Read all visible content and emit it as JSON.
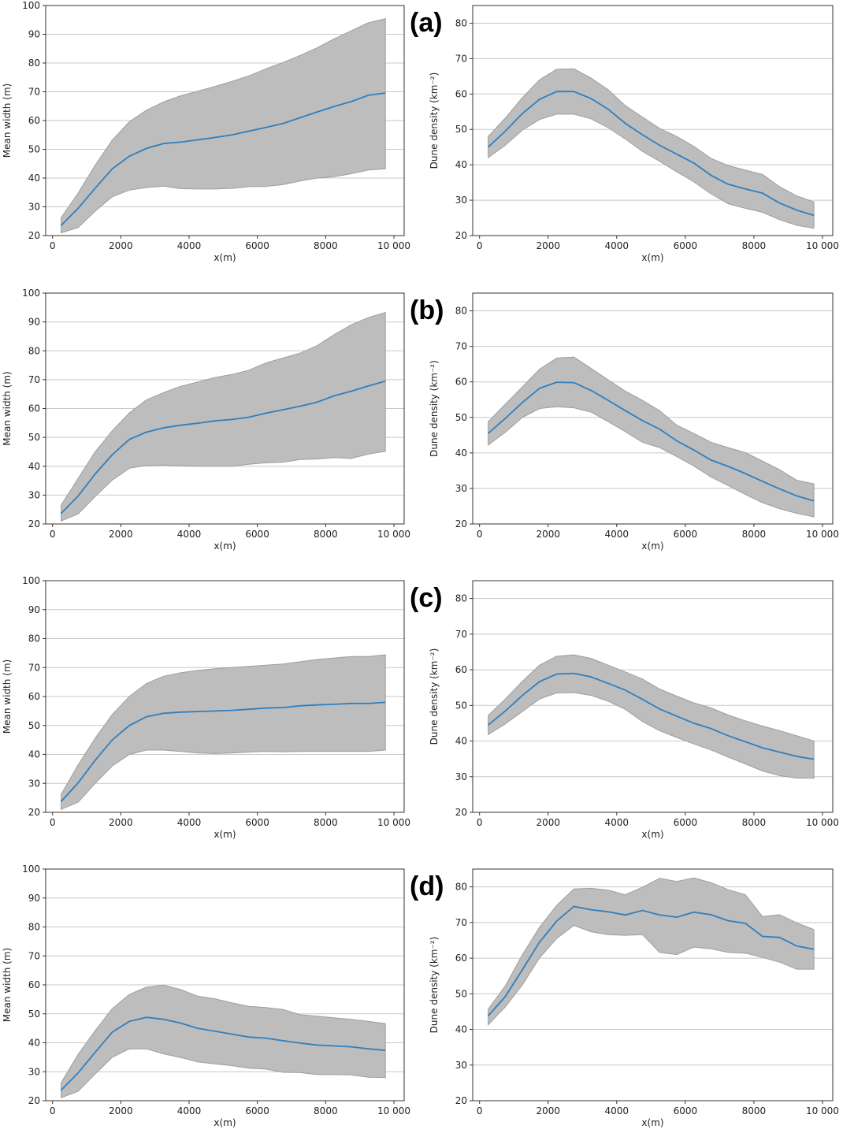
{
  "figure": {
    "panel_labels": [
      "(a)",
      "(b)",
      "(c)",
      "(d)"
    ]
  },
  "colors": {
    "line": "#2f7fbf",
    "band": "#bdbdbd",
    "band_edge": "#9e9e9e",
    "grid": "#c8c8c8",
    "axes": "#333333"
  },
  "chart_data": [
    {
      "panel": "(a)",
      "type": "line",
      "title": "",
      "xlabel": "x(m)",
      "ylabel": "Mean width (m)",
      "xlim": [
        -200,
        10300
      ],
      "ylim": [
        20,
        100
      ],
      "xticks": [
        0,
        2000,
        4000,
        6000,
        8000,
        10000
      ],
      "xtick_labels": [
        "0",
        "2000",
        "4000",
        "6000",
        "8000",
        "10 000"
      ],
      "yticks": [
        20,
        30,
        40,
        50,
        60,
        70,
        80,
        90,
        100
      ],
      "ytick_labels": [
        "20",
        "30",
        "40",
        "50",
        "60",
        "70",
        "80",
        "90",
        "100"
      ],
      "grid": "horizontal",
      "x": [
        250,
        750,
        1250,
        1750,
        2250,
        2750,
        3250,
        3750,
        4250,
        4750,
        5250,
        5750,
        6250,
        6750,
        7250,
        7750,
        8250,
        8750,
        9250,
        9750
      ],
      "mean": [
        23.5,
        29.5,
        36.5,
        43.2,
        47.6,
        50.3,
        52.0,
        52.5,
        53.3,
        54.1,
        55.0,
        56.3,
        57.6,
        59.0,
        61.0,
        63.0,
        64.9,
        66.6,
        68.8,
        69.6
      ],
      "lower": [
        21.0,
        22.8,
        28.5,
        33.5,
        35.8,
        36.7,
        37.2,
        36.3,
        36.2,
        36.2,
        36.4,
        37.0,
        37.1,
        37.7,
        39.0,
        40.0,
        40.5,
        41.5,
        42.8,
        43.2
      ],
      "upper": [
        26.2,
        34.8,
        44.5,
        53.2,
        59.6,
        63.6,
        66.5,
        68.6,
        70.2,
        71.8,
        73.6,
        75.5,
        78.0,
        80.2,
        82.6,
        85.3,
        88.4,
        91.2,
        94.0,
        95.4
      ]
    },
    {
      "panel": "(a)",
      "type": "line",
      "title": "",
      "xlabel": "x(m)",
      "ylabel": "Dune density (km⁻²)",
      "xlim": [
        -200,
        10300
      ],
      "ylim": [
        20,
        85
      ],
      "xticks": [
        0,
        2000,
        4000,
        6000,
        8000,
        10000
      ],
      "xtick_labels": [
        "0",
        "2000",
        "4000",
        "6000",
        "8000",
        "10 000"
      ],
      "yticks": [
        20,
        30,
        40,
        50,
        60,
        70,
        80
      ],
      "ytick_labels": [
        "20",
        "30",
        "40",
        "50",
        "60",
        "70",
        "80"
      ],
      "grid": "horizontal",
      "x": [
        250,
        750,
        1250,
        1750,
        2250,
        2750,
        3250,
        3750,
        4250,
        4750,
        5250,
        5750,
        6250,
        6750,
        7250,
        7750,
        8250,
        8750,
        9250,
        9750
      ],
      "mean": [
        45.0,
        49.5,
        54.5,
        58.5,
        60.7,
        60.7,
        58.7,
        55.7,
        51.7,
        48.5,
        45.5,
        43.0,
        40.5,
        37.0,
        34.5,
        33.2,
        32.0,
        29.2,
        27.2,
        25.7
      ],
      "lower": [
        42.0,
        45.5,
        49.8,
        52.8,
        54.3,
        54.3,
        53.0,
        50.5,
        47.3,
        43.8,
        41.0,
        38.0,
        35.2,
        31.8,
        29.0,
        27.7,
        26.6,
        24.5,
        22.9,
        22.1
      ],
      "upper": [
        48.0,
        53.2,
        59.0,
        64.0,
        67.0,
        67.1,
        64.5,
        61.2,
        56.7,
        53.5,
        50.3,
        48.0,
        45.2,
        41.8,
        39.8,
        38.5,
        37.3,
        33.8,
        31.2,
        29.5
      ]
    },
    {
      "panel": "(b)",
      "type": "line",
      "title": "",
      "xlabel": "x(m)",
      "ylabel": "Mean width (m)",
      "xlim": [
        -200,
        10300
      ],
      "ylim": [
        20,
        100
      ],
      "xticks": [
        0,
        2000,
        4000,
        6000,
        8000,
        10000
      ],
      "xtick_labels": [
        "0",
        "2000",
        "4000",
        "6000",
        "8000",
        "10 000"
      ],
      "yticks": [
        20,
        30,
        40,
        50,
        60,
        70,
        80,
        90,
        100
      ],
      "ytick_labels": [
        "20",
        "30",
        "40",
        "50",
        "60",
        "70",
        "80",
        "90",
        "100"
      ],
      "grid": "horizontal",
      "x": [
        250,
        750,
        1250,
        1750,
        2250,
        2750,
        3250,
        3750,
        4250,
        4750,
        5250,
        5750,
        6250,
        6750,
        7250,
        7750,
        8250,
        8750,
        9250,
        9750
      ],
      "mean": [
        23.6,
        29.7,
        37.3,
        44.0,
        49.3,
        51.8,
        53.3,
        54.2,
        54.9,
        55.7,
        56.2,
        57.0,
        58.4,
        59.6,
        60.8,
        62.2,
        64.4,
        66.0,
        67.8,
        69.5
      ],
      "lower": [
        21.0,
        23.5,
        29.5,
        35.2,
        39.3,
        40.3,
        40.4,
        40.2,
        40.0,
        40.0,
        40.0,
        40.7,
        41.2,
        41.4,
        42.3,
        42.5,
        43.0,
        42.7,
        44.2,
        45.2
      ],
      "upper": [
        26.5,
        35.8,
        45.0,
        52.3,
        58.5,
        63.0,
        65.5,
        67.7,
        69.2,
        70.7,
        71.8,
        73.3,
        75.8,
        77.5,
        79.2,
        81.8,
        85.6,
        89.0,
        91.5,
        93.3
      ]
    },
    {
      "panel": "(b)",
      "type": "line",
      "title": "",
      "xlabel": "x(m)",
      "ylabel": "Dune density (km⁻²)",
      "xlim": [
        -200,
        10300
      ],
      "ylim": [
        20,
        85
      ],
      "xticks": [
        0,
        2000,
        4000,
        6000,
        8000,
        10000
      ],
      "xtick_labels": [
        "0",
        "2000",
        "4000",
        "6000",
        "8000",
        "10 000"
      ],
      "yticks": [
        20,
        30,
        40,
        50,
        60,
        70,
        80
      ],
      "ytick_labels": [
        "20",
        "30",
        "40",
        "50",
        "60",
        "70",
        "80"
      ],
      "grid": "horizontal",
      "x": [
        250,
        750,
        1250,
        1750,
        2250,
        2750,
        3250,
        3750,
        4250,
        4750,
        5250,
        5750,
        6250,
        6750,
        7250,
        7750,
        8250,
        8750,
        9250,
        9750
      ],
      "mean": [
        45.5,
        49.7,
        54.2,
        58.2,
        59.9,
        59.8,
        57.6,
        54.8,
        51.9,
        49.1,
        46.7,
        43.4,
        40.8,
        38.0,
        36.2,
        34.2,
        32.0,
        29.9,
        27.9,
        26.5
      ],
      "lower": [
        42.2,
        45.8,
        50.0,
        52.5,
        53.0,
        52.7,
        51.5,
        48.8,
        46.0,
        43.0,
        41.5,
        39.0,
        36.3,
        33.2,
        30.8,
        28.3,
        26.0,
        24.3,
        23.0,
        22.0
      ],
      "upper": [
        48.8,
        53.7,
        58.6,
        63.6,
        66.7,
        67.0,
        63.8,
        60.6,
        57.4,
        54.8,
        51.9,
        47.8,
        45.5,
        43.0,
        41.5,
        40.1,
        37.7,
        35.3,
        32.3,
        31.3
      ]
    },
    {
      "panel": "(c)",
      "type": "line",
      "title": "",
      "xlabel": "x(m)",
      "ylabel": "Mean width (m)",
      "xlim": [
        -200,
        10300
      ],
      "ylim": [
        20,
        100
      ],
      "xticks": [
        0,
        2000,
        4000,
        6000,
        8000,
        10000
      ],
      "xtick_labels": [
        "0",
        "2000",
        "4000",
        "6000",
        "8000",
        "10 000"
      ],
      "yticks": [
        20,
        30,
        40,
        50,
        60,
        70,
        80,
        90,
        100
      ],
      "ytick_labels": [
        "20",
        "30",
        "40",
        "50",
        "60",
        "70",
        "80",
        "90",
        "100"
      ],
      "grid": "horizontal",
      "x": [
        250,
        750,
        1250,
        1750,
        2250,
        2750,
        3250,
        3750,
        4250,
        4750,
        5250,
        5750,
        6250,
        6750,
        7250,
        7750,
        8250,
        8750,
        9250,
        9750
      ],
      "mean": [
        23.7,
        30.2,
        38.0,
        45.0,
        50.0,
        53.0,
        54.2,
        54.6,
        54.8,
        55.0,
        55.2,
        55.6,
        56.0,
        56.2,
        56.8,
        57.1,
        57.3,
        57.6,
        57.6,
        58.0
      ],
      "lower": [
        21.0,
        23.5,
        30.0,
        36.0,
        40.0,
        41.5,
        41.5,
        41.0,
        40.5,
        40.3,
        40.5,
        40.8,
        41.0,
        40.9,
        41.0,
        41.0,
        41.0,
        41.0,
        41.0,
        41.5
      ],
      "upper": [
        26.2,
        36.4,
        45.6,
        53.8,
        60.0,
        64.5,
        67.0,
        68.2,
        69.0,
        69.6,
        70.0,
        70.4,
        70.8,
        71.2,
        72.0,
        72.8,
        73.3,
        73.8,
        73.8,
        74.4
      ]
    },
    {
      "panel": "(c)",
      "type": "line",
      "title": "",
      "xlabel": "x(m)",
      "ylabel": "Dune density (km⁻²)",
      "xlim": [
        -200,
        10300
      ],
      "ylim": [
        20,
        85
      ],
      "xticks": [
        0,
        2000,
        4000,
        6000,
        8000,
        10000
      ],
      "xtick_labels": [
        "0",
        "2000",
        "4000",
        "6000",
        "8000",
        "10 000"
      ],
      "yticks": [
        20,
        30,
        40,
        50,
        60,
        70,
        80
      ],
      "ytick_labels": [
        "20",
        "30",
        "40",
        "50",
        "60",
        "70",
        "80"
      ],
      "grid": "horizontal",
      "x": [
        250,
        750,
        1250,
        1750,
        2250,
        2750,
        3250,
        3750,
        4250,
        4750,
        5250,
        5750,
        6250,
        6750,
        7250,
        7750,
        8250,
        8750,
        9250,
        9750
      ],
      "mean": [
        44.5,
        48.4,
        52.8,
        56.7,
        58.8,
        59.0,
        58.0,
        56.2,
        54.3,
        51.7,
        49.0,
        47.0,
        45.0,
        43.5,
        41.5,
        39.8,
        38.1,
        36.9,
        35.7,
        34.9
      ],
      "lower": [
        41.8,
        44.8,
        48.3,
        51.8,
        53.5,
        53.6,
        52.8,
        51.2,
        48.9,
        45.5,
        42.9,
        41.0,
        39.2,
        37.5,
        35.5,
        33.6,
        31.6,
        30.3,
        29.6,
        29.6
      ],
      "upper": [
        47.2,
        51.8,
        56.8,
        61.3,
        63.8,
        64.2,
        63.2,
        61.3,
        59.4,
        57.4,
        54.6,
        52.6,
        50.7,
        49.3,
        47.3,
        45.7,
        44.2,
        42.9,
        41.5,
        40.0
      ]
    },
    {
      "panel": "(d)",
      "type": "line",
      "title": "",
      "xlabel": "x(m)",
      "ylabel": "Mean width (m)",
      "xlim": [
        -200,
        10300
      ],
      "ylim": [
        20,
        100
      ],
      "xticks": [
        0,
        2000,
        4000,
        6000,
        8000,
        10000
      ],
      "xtick_labels": [
        "0",
        "2000",
        "4000",
        "6000",
        "8000",
        "10 000"
      ],
      "yticks": [
        20,
        30,
        40,
        50,
        60,
        70,
        80,
        90,
        100
      ],
      "ytick_labels": [
        "20",
        "30",
        "40",
        "50",
        "60",
        "70",
        "80",
        "90",
        "100"
      ],
      "grid": "horizontal",
      "x": [
        250,
        750,
        1250,
        1750,
        2250,
        2750,
        3250,
        3750,
        4250,
        4750,
        5250,
        5750,
        6250,
        6750,
        7250,
        7750,
        8250,
        8750,
        9250,
        9750
      ],
      "mean": [
        23.6,
        29.6,
        36.7,
        43.7,
        47.4,
        48.8,
        48.1,
        46.8,
        45.0,
        44.0,
        43.0,
        42.0,
        41.6,
        40.7,
        39.9,
        39.2,
        38.9,
        38.6,
        37.9,
        37.4
      ],
      "lower": [
        21.0,
        23.3,
        29.2,
        35.0,
        37.9,
        37.9,
        36.2,
        34.9,
        33.4,
        32.7,
        32.1,
        31.2,
        30.9,
        29.8,
        29.7,
        29.0,
        29.0,
        28.9,
        28.1,
        28.0
      ],
      "upper": [
        26.2,
        36.0,
        44.2,
        51.8,
        56.7,
        59.2,
        59.9,
        58.4,
        56.1,
        55.2,
        53.8,
        52.6,
        52.2,
        51.5,
        49.7,
        49.2,
        48.6,
        48.1,
        47.4,
        46.6
      ]
    },
    {
      "panel": "(d)",
      "type": "line",
      "title": "",
      "xlabel": "x(m)",
      "ylabel": "Dune density (km⁻²)",
      "xlim": [
        -200,
        10300
      ],
      "ylim": [
        20,
        85
      ],
      "xticks": [
        0,
        2000,
        4000,
        6000,
        8000,
        10000
      ],
      "xtick_labels": [
        "0",
        "2000",
        "4000",
        "6000",
        "8000",
        "10 000"
      ],
      "yticks": [
        20,
        30,
        40,
        50,
        60,
        70,
        80
      ],
      "ytick_labels": [
        "20",
        "30",
        "40",
        "50",
        "60",
        "70",
        "80"
      ],
      "grid": "horizontal",
      "x": [
        250,
        750,
        1250,
        1750,
        2250,
        2750,
        3250,
        3750,
        4250,
        4750,
        5250,
        5750,
        6250,
        6750,
        7250,
        7750,
        8250,
        8750,
        9250,
        9750
      ],
      "mean": [
        43.8,
        49.2,
        56.8,
        64.5,
        70.4,
        74.5,
        73.6,
        73.0,
        72.1,
        73.4,
        72.1,
        71.5,
        72.9,
        72.2,
        70.5,
        69.8,
        66.1,
        65.8,
        63.4,
        62.5
      ],
      "lower": [
        41.3,
        46.3,
        52.5,
        60.1,
        65.5,
        69.2,
        67.4,
        66.6,
        66.4,
        66.6,
        61.6,
        61.0,
        63.1,
        62.6,
        61.6,
        61.4,
        60.2,
        58.9,
        56.9,
        56.9
      ],
      "upper": [
        45.7,
        52.2,
        61.0,
        68.7,
        74.8,
        79.4,
        79.6,
        79.1,
        77.8,
        79.9,
        82.4,
        81.5,
        82.5,
        81.2,
        79.2,
        77.8,
        71.7,
        72.2,
        69.9,
        68.0
      ]
    }
  ]
}
